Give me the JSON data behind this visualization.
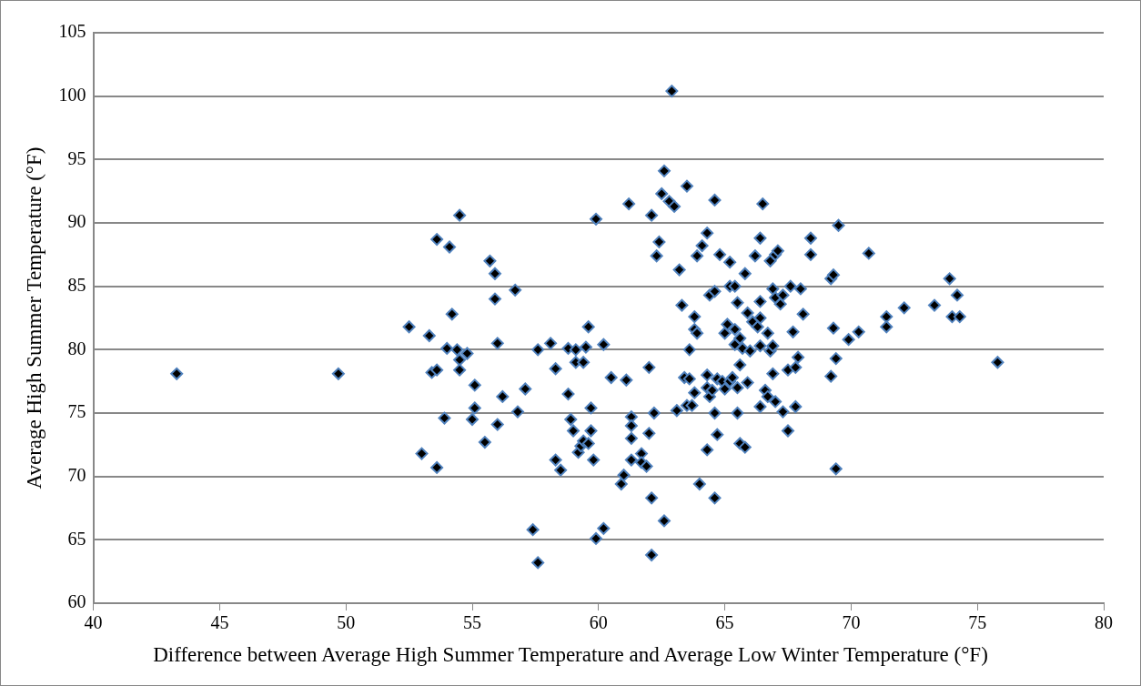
{
  "chart_data": {
    "type": "scatter",
    "xlabel": "Difference between Average High Summer Temperature and Average Low Winter Temperature (°F)",
    "ylabel": "Average High Summer Temperature (°F)",
    "xlim": [
      40,
      80
    ],
    "xticks": [
      40,
      45,
      50,
      55,
      60,
      65,
      70,
      75,
      80
    ],
    "ylim": [
      60,
      105
    ],
    "yticks": [
      60,
      65,
      70,
      75,
      80,
      85,
      90,
      95,
      100,
      105
    ],
    "grid": "y",
    "marker": "diamond",
    "series": [
      {
        "color": "#000000",
        "x": [
          43.3,
          49.7,
          52.5,
          53.0,
          53.3,
          53.4,
          53.6,
          53.6,
          53.6,
          53.9,
          54.0,
          54.1,
          54.2,
          54.4,
          54.5,
          54.5,
          54.5,
          54.8,
          55.0,
          55.1,
          55.1,
          55.5,
          55.7,
          55.9,
          55.9,
          56.0,
          56.0,
          56.2,
          56.7,
          56.8,
          57.1,
          57.4,
          57.6,
          57.6,
          58.1,
          58.3,
          58.3,
          58.5,
          58.8,
          58.8,
          58.9,
          59.0,
          59.1,
          59.1,
          59.2,
          59.3,
          59.4,
          59.4,
          59.5,
          59.6,
          59.6,
          59.7,
          59.7,
          59.8,
          59.9,
          59.9,
          60.2,
          60.2,
          60.5,
          60.9,
          61.0,
          61.1,
          61.2,
          61.3,
          61.3,
          61.3,
          61.3,
          61.7,
          61.7,
          61.9,
          62.0,
          62.0,
          62.1,
          62.1,
          62.1,
          62.2,
          62.3,
          62.4,
          62.5,
          62.6,
          62.6,
          62.8,
          62.9,
          63.0,
          63.1,
          63.2,
          63.3,
          63.4,
          63.5,
          63.5,
          63.6,
          63.6,
          63.7,
          63.8,
          63.8,
          63.8,
          63.9,
          63.9,
          64.0,
          64.1,
          64.3,
          64.3,
          64.3,
          64.3,
          64.4,
          64.4,
          64.5,
          64.6,
          64.6,
          64.6,
          64.6,
          64.7,
          64.7,
          64.8,
          64.9,
          65.0,
          65.0,
          65.1,
          65.2,
          65.2,
          65.2,
          65.3,
          65.4,
          65.4,
          65.4,
          65.5,
          65.5,
          65.5,
          65.6,
          65.6,
          65.6,
          65.7,
          65.8,
          65.8,
          65.9,
          65.9,
          66.0,
          66.1,
          66.2,
          66.3,
          66.4,
          66.4,
          66.4,
          66.4,
          66.4,
          66.5,
          66.6,
          66.7,
          66.7,
          66.8,
          66.8,
          66.9,
          66.9,
          66.9,
          67.0,
          67.0,
          67.0,
          67.1,
          67.2,
          67.3,
          67.3,
          67.5,
          67.5,
          67.6,
          67.7,
          67.8,
          67.8,
          67.9,
          68.0,
          68.1,
          68.4,
          68.4,
          69.2,
          69.2,
          69.3,
          69.3,
          69.4,
          69.4,
          69.5,
          69.9,
          70.3,
          70.7,
          71.4,
          71.4,
          72.1,
          73.3,
          73.9,
          74.0,
          74.2,
          74.3,
          75.8
        ],
        "values": [
          78.1,
          78.1,
          81.8,
          71.8,
          81.1,
          78.2,
          78.4,
          88.7,
          70.7,
          74.6,
          80.1,
          88.1,
          82.8,
          80.0,
          79.2,
          78.4,
          90.6,
          79.7,
          74.5,
          77.2,
          75.4,
          72.7,
          87.0,
          86.0,
          84.0,
          80.5,
          74.1,
          76.3,
          84.7,
          75.1,
          76.9,
          65.8,
          63.2,
          80.0,
          80.5,
          78.5,
          71.3,
          70.5,
          80.1,
          76.5,
          74.5,
          73.6,
          79.0,
          80.0,
          71.9,
          72.4,
          79.0,
          72.8,
          80.2,
          81.8,
          72.6,
          75.4,
          73.6,
          71.3,
          65.1,
          90.3,
          65.9,
          80.4,
          77.8,
          69.4,
          70.1,
          77.6,
          91.5,
          74.7,
          74.0,
          73.0,
          71.3,
          71.8,
          71.1,
          70.8,
          78.6,
          73.4,
          90.6,
          68.3,
          63.8,
          75.0,
          87.4,
          88.5,
          92.3,
          94.1,
          66.5,
          91.7,
          100.4,
          91.3,
          75.2,
          86.3,
          83.5,
          77.8,
          92.9,
          75.6,
          77.7,
          80.0,
          75.6,
          82.6,
          81.6,
          76.6,
          87.4,
          81.3,
          69.4,
          88.2,
          89.2,
          78.0,
          77.0,
          72.1,
          84.3,
          76.3,
          76.8,
          91.8,
          84.6,
          75.0,
          68.3,
          77.7,
          73.3,
          87.5,
          77.5,
          81.3,
          76.9,
          82.0,
          86.9,
          85.0,
          77.5,
          77.8,
          85.0,
          81.6,
          80.4,
          83.7,
          77.0,
          75.0,
          80.9,
          78.8,
          72.6,
          80.1,
          86.0,
          72.3,
          82.9,
          77.4,
          79.9,
          82.2,
          87.4,
          81.8,
          83.8,
          88.8,
          82.5,
          80.3,
          75.5,
          91.5,
          76.8,
          81.3,
          76.3,
          87.0,
          79.9,
          84.8,
          80.3,
          78.1,
          84.1,
          87.5,
          75.9,
          87.8,
          83.6,
          84.3,
          75.1,
          78.4,
          73.6,
          85.0,
          81.4,
          78.6,
          75.5,
          79.4,
          84.8,
          82.8,
          88.8,
          87.5,
          85.6,
          77.9,
          81.7,
          85.9,
          79.3,
          70.6,
          89.8,
          80.8,
          81.4,
          87.6,
          82.6,
          81.8,
          83.3,
          83.5,
          85.6,
          82.6,
          84.3,
          82.6,
          79.0
        ]
      }
    ]
  }
}
